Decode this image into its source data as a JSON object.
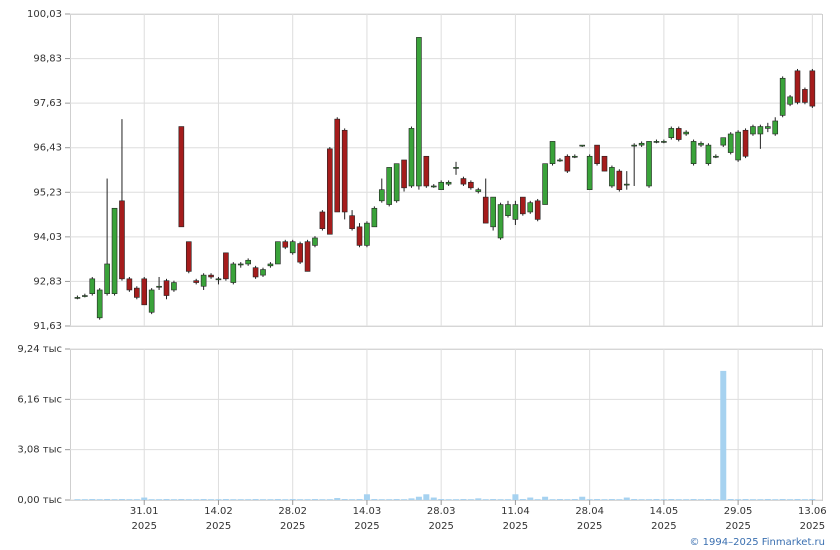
{
  "chart_data": [
    {
      "type": "candlestick",
      "up_color": "#3aa33a",
      "down_color": "#a51c1c",
      "open": [
        92.4,
        92.45,
        92.5,
        91.85,
        92.5,
        92.5,
        95.0,
        92.9,
        92.65,
        92.9,
        92.0,
        92.7,
        92.85,
        92.6,
        97.0,
        93.9,
        92.85,
        92.7,
        93.0,
        92.9,
        93.6,
        92.8,
        93.3,
        93.3,
        93.2,
        93.0,
        93.25,
        93.3,
        93.9,
        93.6,
        93.85,
        93.9,
        93.8,
        94.7,
        96.4,
        97.2,
        96.9,
        94.6,
        94.3,
        93.8,
        94.3,
        95.0,
        94.9,
        95.0,
        96.1,
        95.4,
        95.4,
        96.2,
        95.4,
        95.3,
        95.45,
        95.9,
        95.6,
        95.5,
        95.25,
        95.1,
        94.3,
        94.0,
        94.6,
        94.5,
        95.1,
        94.7,
        95.0,
        94.9,
        96.0,
        96.1,
        96.2,
        96.2,
        96.5,
        95.3,
        96.5,
        96.2,
        95.4,
        95.8,
        95.45,
        96.5,
        96.5,
        95.4,
        96.6,
        96.6,
        96.7,
        96.95,
        96.8,
        96.0,
        96.5,
        96.0,
        96.2,
        96.5,
        96.3,
        96.1,
        96.9,
        96.8,
        96.8,
        96.95,
        96.8,
        97.3,
        97.6,
        98.5,
        98.0,
        98.5
      ],
      "high": [
        92.45,
        92.5,
        92.95,
        92.65,
        95.6,
        94.8,
        97.2,
        92.95,
        92.7,
        92.95,
        92.65,
        92.95,
        92.9,
        92.85,
        97.0,
        93.9,
        92.9,
        93.05,
        93.05,
        92.95,
        93.6,
        93.35,
        93.35,
        93.45,
        93.25,
        93.2,
        93.35,
        93.9,
        93.95,
        93.95,
        93.9,
        93.95,
        94.05,
        94.75,
        96.45,
        97.25,
        96.95,
        94.75,
        94.4,
        94.45,
        94.85,
        95.6,
        95.9,
        96.0,
        96.1,
        97.0,
        99.4,
        96.2,
        95.45,
        95.55,
        95.55,
        96.05,
        95.65,
        95.55,
        95.35,
        95.6,
        95.1,
        94.95,
        95.0,
        95.0,
        95.1,
        95.0,
        95.05,
        96.0,
        96.6,
        96.15,
        96.25,
        96.25,
        96.5,
        96.25,
        96.5,
        96.2,
        95.95,
        95.85,
        95.8,
        96.55,
        96.6,
        96.6,
        96.65,
        96.65,
        97.0,
        97.0,
        96.9,
        96.65,
        96.6,
        96.55,
        96.25,
        96.7,
        96.85,
        96.9,
        96.95,
        97.05,
        97.05,
        97.1,
        97.25,
        98.35,
        97.85,
        98.55,
        98.05,
        98.55
      ],
      "low": [
        92.35,
        92.4,
        92.45,
        91.8,
        92.45,
        92.45,
        92.85,
        92.55,
        92.35,
        92.2,
        91.95,
        92.6,
        92.35,
        92.55,
        94.3,
        93.05,
        92.75,
        92.6,
        92.9,
        92.75,
        92.85,
        92.75,
        93.2,
        93.25,
        92.9,
        92.95,
        93.2,
        93.3,
        93.7,
        93.55,
        93.3,
        93.1,
        93.75,
        94.2,
        94.1,
        94.7,
        94.5,
        94.2,
        93.75,
        93.75,
        94.3,
        94.95,
        94.85,
        94.95,
        95.25,
        95.35,
        95.3,
        95.35,
        95.35,
        95.3,
        95.4,
        95.7,
        95.4,
        95.3,
        95.2,
        94.4,
        94.2,
        93.95,
        94.55,
        94.35,
        94.6,
        94.65,
        94.45,
        94.9,
        95.95,
        96.05,
        95.75,
        96.15,
        96.45,
        95.3,
        95.95,
        95.8,
        95.35,
        95.25,
        95.3,
        95.4,
        96.45,
        95.35,
        96.55,
        96.55,
        96.65,
        96.6,
        96.75,
        95.95,
        96.45,
        95.95,
        96.15,
        96.45,
        96.25,
        96.05,
        96.15,
        96.75,
        96.4,
        96.85,
        96.75,
        97.25,
        97.55,
        97.6,
        97.6,
        97.5
      ],
      "close": [
        92.4,
        92.45,
        92.9,
        92.6,
        93.3,
        94.8,
        92.9,
        92.6,
        92.4,
        92.2,
        92.6,
        92.7,
        92.45,
        92.8,
        94.3,
        93.1,
        92.8,
        93.0,
        92.95,
        92.9,
        92.9,
        93.3,
        93.3,
        93.4,
        92.95,
        93.15,
        93.3,
        93.9,
        93.75,
        93.9,
        93.35,
        93.1,
        94.0,
        94.25,
        94.1,
        94.7,
        94.7,
        94.25,
        93.8,
        94.4,
        94.8,
        95.3,
        95.9,
        96.0,
        95.35,
        96.95,
        99.4,
        95.4,
        95.4,
        95.5,
        95.5,
        95.9,
        95.45,
        95.35,
        95.3,
        94.4,
        95.1,
        94.9,
        94.9,
        94.9,
        94.65,
        94.95,
        94.5,
        96.0,
        96.6,
        96.1,
        95.8,
        96.2,
        96.5,
        96.2,
        96.0,
        95.8,
        95.9,
        95.3,
        95.45,
        96.5,
        96.55,
        96.6,
        96.6,
        96.6,
        96.95,
        96.65,
        96.85,
        96.6,
        96.55,
        96.5,
        96.2,
        96.7,
        96.8,
        96.85,
        96.2,
        97.0,
        97.0,
        97.0,
        97.15,
        98.3,
        97.8,
        97.65,
        97.65,
        97.55
      ],
      "xlim": [
        -1,
        100.3
      ],
      "ylim": [
        91.63,
        100.03
      ],
      "yticks": [
        {
          "value": 91.63,
          "label": "91,63"
        },
        {
          "value": 92.83,
          "label": "92,83"
        },
        {
          "value": 94.03,
          "label": "94,03"
        },
        {
          "value": 95.23,
          "label": "95,23"
        },
        {
          "value": 96.43,
          "label": "96,43"
        },
        {
          "value": 97.63,
          "label": "97,63"
        },
        {
          "value": 98.83,
          "label": "98,83"
        },
        {
          "value": 100.03,
          "label": "100,03"
        }
      ],
      "grid": true
    },
    {
      "type": "bar",
      "color": "#a6d2f0",
      "values": [
        0.05,
        0.05,
        0.06,
        0.05,
        0.06,
        0.05,
        0.06,
        0.05,
        0.05,
        0.15,
        0.05,
        0.05,
        0.06,
        0.05,
        0.06,
        0.05,
        0.05,
        0.06,
        0.05,
        0.05,
        0.06,
        0.05,
        0.05,
        0.05,
        0.06,
        0.05,
        0.05,
        0.06,
        0.05,
        0.06,
        0.05,
        0.05,
        0.06,
        0.05,
        0.05,
        0.12,
        0.06,
        0.05,
        0.06,
        0.35,
        0.06,
        0.05,
        0.05,
        0.06,
        0.05,
        0.1,
        0.2,
        0.35,
        0.15,
        0.06,
        0.05,
        0.05,
        0.06,
        0.05,
        0.1,
        0.05,
        0.06,
        0.05,
        0.05,
        0.35,
        0.06,
        0.15,
        0.05,
        0.2,
        0.05,
        0.06,
        0.05,
        0.06,
        0.2,
        0.05,
        0.06,
        0.05,
        0.06,
        0.05,
        0.15,
        0.06,
        0.05,
        0.05,
        0.06,
        0.05,
        0.06,
        0.05,
        0.05,
        0.06,
        0.05,
        0.06,
        0.05,
        7.9,
        0.06,
        0.05,
        0.06,
        0.05,
        0.05,
        0.06,
        0.05,
        0.06,
        0.05,
        0.06,
        0.05,
        0.06
      ],
      "xlim": [
        -1,
        100.3
      ],
      "ylim": [
        0,
        9.24
      ],
      "yticks": [
        {
          "value": 0,
          "label": "0,00 тыс"
        },
        {
          "value": 3.08,
          "label": "3,08 тыс"
        },
        {
          "value": 6.16,
          "label": "6,16 тыс"
        },
        {
          "value": 9.24,
          "label": "9,24 тыс"
        }
      ],
      "xticks": [
        {
          "value": 9,
          "label": "31.01\n2025"
        },
        {
          "value": 19,
          "label": "14.02\n2025"
        },
        {
          "value": 29,
          "label": "28.02\n2025"
        },
        {
          "value": 39,
          "label": "14.03\n2025"
        },
        {
          "value": 49,
          "label": "28.03\n2025"
        },
        {
          "value": 59,
          "label": "11.04\n2025"
        },
        {
          "value": 69,
          "label": "28.04\n2025"
        },
        {
          "value": 79,
          "label": "14.05\n2025"
        },
        {
          "value": 89,
          "label": "29.05\n2025"
        },
        {
          "value": 99,
          "label": "13.06\n2025"
        }
      ],
      "grid": true
    }
  ],
  "footer": "© 1994–2025 Finmarket.ru"
}
